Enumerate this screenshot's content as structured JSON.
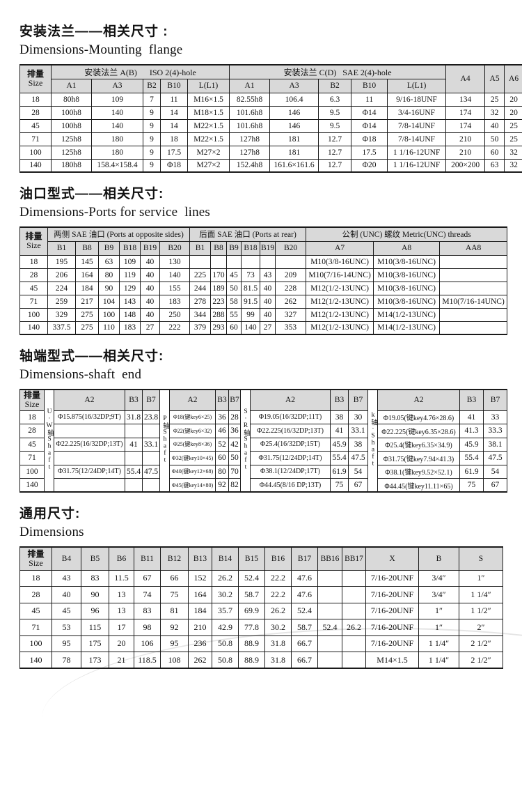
{
  "colors": {
    "header_bg": "#d9d9d9",
    "border": "#1a1a1a",
    "watermark": "#e4e4e4"
  },
  "titles": {
    "s1_zh": "安装法兰——相关尺寸 :",
    "s1_en": "Dimensions-Mounting  flange",
    "s2_zh": "油口型式——相关尺寸:",
    "s2_en": "Dimensions-Ports for service  lines",
    "s3_zh": "轴端型式——相关尺寸:",
    "s3_en": "Dimensions-shaft  end",
    "s4_zh": "通用尺寸:",
    "s4_en": "Dimensions"
  },
  "flange_table": {
    "corner": [
      "排量",
      "Size"
    ],
    "groups": [
      {
        "label": "安装法兰 A(B)      ISO 2(4)-hole",
        "cols": [
          "A1",
          "A3",
          "B2",
          "B10",
          "L(L1)"
        ]
      },
      {
        "label": "安装法兰 C(D)   SAE 2(4)-hole",
        "cols": [
          "A1",
          "A3",
          "B2",
          "B10",
          "L(L1)"
        ]
      }
    ],
    "tail_cols": [
      "A4",
      "A5",
      "A6"
    ],
    "rows": [
      [
        "18",
        "80h8",
        "109",
        "7",
        "11",
        "M16×1.5",
        "82.55h8",
        "106.4",
        "6.3",
        "11",
        "9/16-18UNF",
        "134",
        "25",
        "20"
      ],
      [
        "28",
        "100h8",
        "140",
        "9",
        "14",
        "M18×1.5",
        "101.6h8",
        "146",
        "9.5",
        "Φ14",
        "3/4-16UNF",
        "174",
        "32",
        "20"
      ],
      [
        "45",
        "100h8",
        "140",
        "9",
        "14",
        "M22×1.5",
        "101.6h8",
        "146",
        "9.5",
        "Φ14",
        "7/8-14UNF",
        "174",
        "40",
        "25"
      ],
      [
        "71",
        "125h8",
        "180",
        "9",
        "18",
        "M22×1.5",
        "127h8",
        "181",
        "12.7",
        "Φ18",
        "7/8-14UNF",
        "210",
        "50",
        "25"
      ],
      [
        "100",
        "125h8",
        "180",
        "9",
        "17.5",
        "M27×2",
        "127h8",
        "181",
        "12.7",
        "17.5",
        "1 1/16-12UNF",
        "210",
        "60",
        "32"
      ],
      [
        "140",
        "180h8",
        "158.4×158.4",
        "9",
        "Φ18",
        "M27×2",
        "152.4h8",
        "161.6×161.6",
        "12.7",
        "Φ20",
        "1 1/16-12UNF",
        "200×200",
        "63",
        "32"
      ]
    ]
  },
  "ports_table": {
    "corner": [
      "排量",
      "Size"
    ],
    "groups": [
      {
        "label": "两侧 SAE 油口 (Ports at opposite sides)",
        "cols": [
          "B1",
          "B8",
          "B9",
          "B18",
          "B19",
          "B20"
        ]
      },
      {
        "label": "后面 SAE 油口 (Ports at rear)",
        "cols": [
          "B1",
          "B8",
          "B9",
          "B18",
          "B19",
          "B20"
        ]
      },
      {
        "label": "公制 (UNC) 螺纹 Metric(UNC) threads",
        "cols": [
          "A7",
          "A8",
          "AA8"
        ]
      }
    ],
    "rows": [
      [
        "18",
        "195",
        "145",
        "63",
        "109",
        "40",
        "130",
        "",
        "",
        "",
        "",
        "",
        "",
        "M10(3/8-16UNC)",
        "M10(3/8-16UNC)",
        ""
      ],
      [
        "28",
        "206",
        "164",
        "80",
        "119",
        "40",
        "140",
        "225",
        "170",
        "45",
        "73",
        "43",
        "209",
        "M10(7/16-14UNC)",
        "M10(3/8-16UNC)",
        ""
      ],
      [
        "45",
        "224",
        "184",
        "90",
        "129",
        "40",
        "155",
        "244",
        "189",
        "50",
        "81.5",
        "40",
        "228",
        "M12(1/2-13UNC)",
        "M10(3/8-16UNC)",
        ""
      ],
      [
        "71",
        "259",
        "217",
        "104",
        "143",
        "40",
        "183",
        "278",
        "223",
        "58",
        "91.5",
        "40",
        "262",
        "M12(1/2-13UNC)",
        "M10(3/8-16UNC)",
        "M10(7/16-14UNC)"
      ],
      [
        "100",
        "329",
        "275",
        "100",
        "148",
        "40",
        "250",
        "344",
        "288",
        "55",
        "99",
        "40",
        "327",
        "M12(1/2-13UNC)",
        "M14(1/2-13UNC)",
        ""
      ],
      [
        "140",
        "337.5",
        "275",
        "110",
        "183",
        "27",
        "222",
        "379",
        "293",
        "60",
        "140",
        "27",
        "353",
        "M12(1/2-13UNC)",
        "M14(1/2-13UNC)",
        ""
      ]
    ]
  },
  "shaft_table": {
    "corner": [
      "排量",
      "Size"
    ],
    "sizes": [
      "18",
      "28",
      "45",
      "71",
      "100",
      "140"
    ],
    "shaft_groups": [
      {
        "vertical_label": "U·W轴Shaft",
        "cols": [
          "A2",
          "B3",
          "B7"
        ],
        "rows": [
          [
            "Φ15.875(16/32DP;9T)",
            "31.8",
            "23.8"
          ],
          [
            "",
            "",
            ""
          ],
          [
            "Φ22.225(16/32DP;13T)",
            "41",
            "33.1"
          ],
          [
            "",
            "",
            ""
          ],
          [
            "Φ31.75(12/24DP;14T)",
            "55.4",
            "47.5"
          ],
          [
            "",
            "",
            ""
          ]
        ]
      },
      {
        "vertical_label": "P轴Shaft",
        "cols": [
          "A2",
          "B3",
          "B7"
        ],
        "rows": [
          [
            "Φ18(键key6×25)",
            "36",
            "28"
          ],
          [
            "Φ22(键key6×32)",
            "46",
            "36"
          ],
          [
            "Φ25(键key8×36)",
            "52",
            "42"
          ],
          [
            "Φ32(键key10×45)",
            "60",
            "50"
          ],
          [
            "Φ40(键key12×68)",
            "80",
            "70"
          ],
          [
            "Φ45(键key14×80)",
            "92",
            "82"
          ]
        ]
      },
      {
        "vertical_label": "S·R轴Shaft",
        "cols": [
          "A2",
          "B3",
          "B7"
        ],
        "rows": [
          [
            "Φ19.05(16/32DP;11T)",
            "38",
            "30"
          ],
          [
            "Φ22.225(16/32DP;13T)",
            "41",
            "33.1"
          ],
          [
            "Φ25.4(16/32DP;15T)",
            "45.9",
            "38"
          ],
          [
            "Φ31.75(12/24DP;14T)",
            "55.4",
            "47.5"
          ],
          [
            "Φ38.1(12/24DP;17T)",
            "61.9",
            "54"
          ],
          [
            "Φ44.45(8/16 DP;13T)",
            "75",
            "67"
          ]
        ]
      },
      {
        "vertical_label": "k轴·Shaft",
        "cols": [
          "A2",
          "B3",
          "B7"
        ],
        "rows": [
          [
            "Φ19.05(键key4.76×28.6)",
            "41",
            "33"
          ],
          [
            "Φ22.225(键key6.35×28.6)",
            "41.3",
            "33.3"
          ],
          [
            "Φ25.4(键key6.35×34.9)",
            "45.9",
            "38.1"
          ],
          [
            "Φ31.75(键key7.94×41.3)",
            "55.4",
            "47.5"
          ],
          [
            "Φ38.1(键key9.52×52.1)",
            "61.9",
            "54"
          ],
          [
            "Φ44.45(键key11.11×65)",
            "75",
            "67"
          ]
        ]
      }
    ]
  },
  "general_table": {
    "corner": [
      "排量",
      "Size"
    ],
    "cols": [
      "B4",
      "B5",
      "B6",
      "B11",
      "B12",
      "B13",
      "B14",
      "B15",
      "B16",
      "B17",
      "BB16",
      "BB17",
      "X",
      "B",
      "S"
    ],
    "rows": [
      [
        "18",
        "43",
        "83",
        "11.5",
        "67",
        "66",
        "152",
        "26.2",
        "52.4",
        "22.2",
        "47.6",
        "",
        "",
        "7/16-20UNF",
        "3/4″",
        "1″"
      ],
      [
        "28",
        "40",
        "90",
        "13",
        "74",
        "75",
        "164",
        "30.2",
        "58.7",
        "22.2",
        "47.6",
        "",
        "",
        "7/16-20UNF",
        "3/4″",
        "1 1/4″"
      ],
      [
        "45",
        "45",
        "96",
        "13",
        "83",
        "81",
        "184",
        "35.7",
        "69.9",
        "26.2",
        "52.4",
        "",
        "",
        "7/16-20UNF",
        "1″",
        "1 1/2″"
      ],
      [
        "71",
        "53",
        "115",
        "17",
        "98",
        "92",
        "210",
        "42.9",
        "77.8",
        "30.2",
        "58.7",
        "52.4",
        "26.2",
        "7/16-20UNF",
        "1″",
        "2″"
      ],
      [
        "100",
        "95",
        "175",
        "20",
        "106",
        "95",
        "236",
        "50.8",
        "88.9",
        "31.8",
        "66.7",
        "",
        "",
        "7/16-20UNF",
        "1 1/4″",
        "2 1/2″"
      ],
      [
        "140",
        "78",
        "173",
        "21",
        "118.5",
        "108",
        "262",
        "50.8",
        "88.9",
        "31.8",
        "66.7",
        "",
        "",
        "M14×1.5",
        "1 1/4″",
        "2 1/2″"
      ]
    ]
  }
}
